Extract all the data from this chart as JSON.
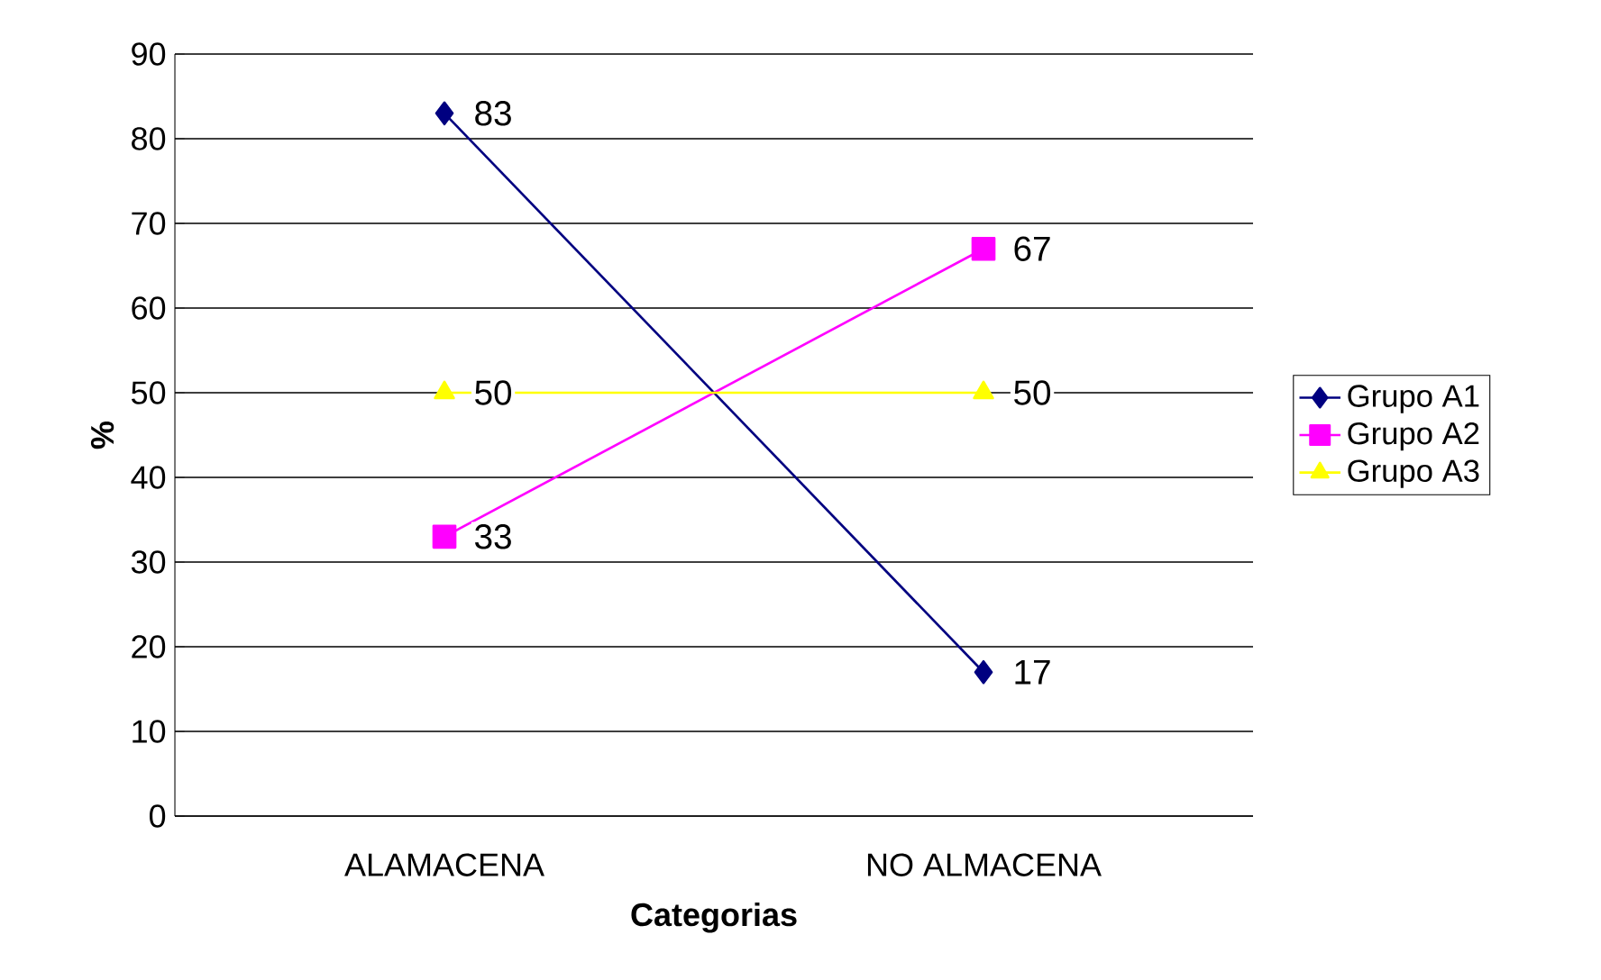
{
  "chart_data": {
    "type": "line",
    "xlabel": "Categorias",
    "ylabel": "%",
    "categories": [
      "ALAMACENA",
      "NO ALMACENA"
    ],
    "series": [
      {
        "name": "Grupo A1",
        "color": "#000080",
        "values": [
          83,
          17
        ],
        "marker": "diamond"
      },
      {
        "name": "Grupo A2",
        "color": "#ff00ff",
        "values": [
          33,
          67
        ],
        "marker": "square"
      },
      {
        "name": "Grupo A3",
        "color": "#ffff00",
        "values": [
          50,
          50
        ],
        "marker": "triangle"
      }
    ],
    "ylim": [
      0,
      90
    ],
    "yticks": [
      0,
      10,
      20,
      30,
      40,
      50,
      60,
      70,
      80,
      90
    ],
    "grid": "y",
    "legend": "right",
    "data_labels": true,
    "line_style": "solid"
  }
}
